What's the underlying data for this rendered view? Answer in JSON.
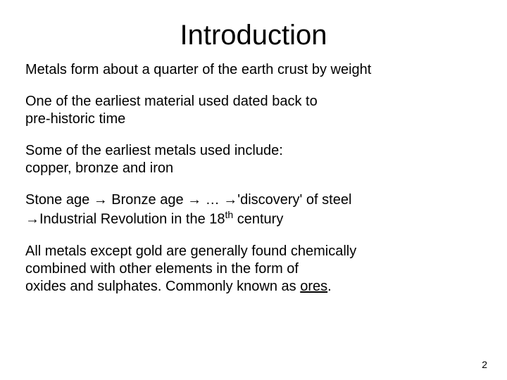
{
  "title": "Introduction",
  "paragraphs": {
    "p1": "Metals form about a quarter of the earth crust by weight",
    "p2a": "One of the earliest material used dated back to",
    "p2b": "pre-historic time",
    "p3a": "Some of the earliest metals used include:",
    "p3b": "copper, bronze and iron",
    "p4a": "Stone age → Bronze age → … →'discovery' of steel",
    "p4b_prefix": "→Industrial Revolution in the 18",
    "p4b_sup": "th",
    "p4b_suffix": " century",
    "p5a": "All metals except gold are generally found chemically",
    "p5b": "combined with other elements in the form of",
    "p5c_prefix": "oxides and sulphates. Commonly known as ",
    "p5c_underlined": "ores",
    "p5c_suffix": "."
  },
  "page_number": "2",
  "styles": {
    "background_color": "#ffffff",
    "text_color": "#000000",
    "title_fontsize": 40,
    "body_fontsize": 20
  }
}
